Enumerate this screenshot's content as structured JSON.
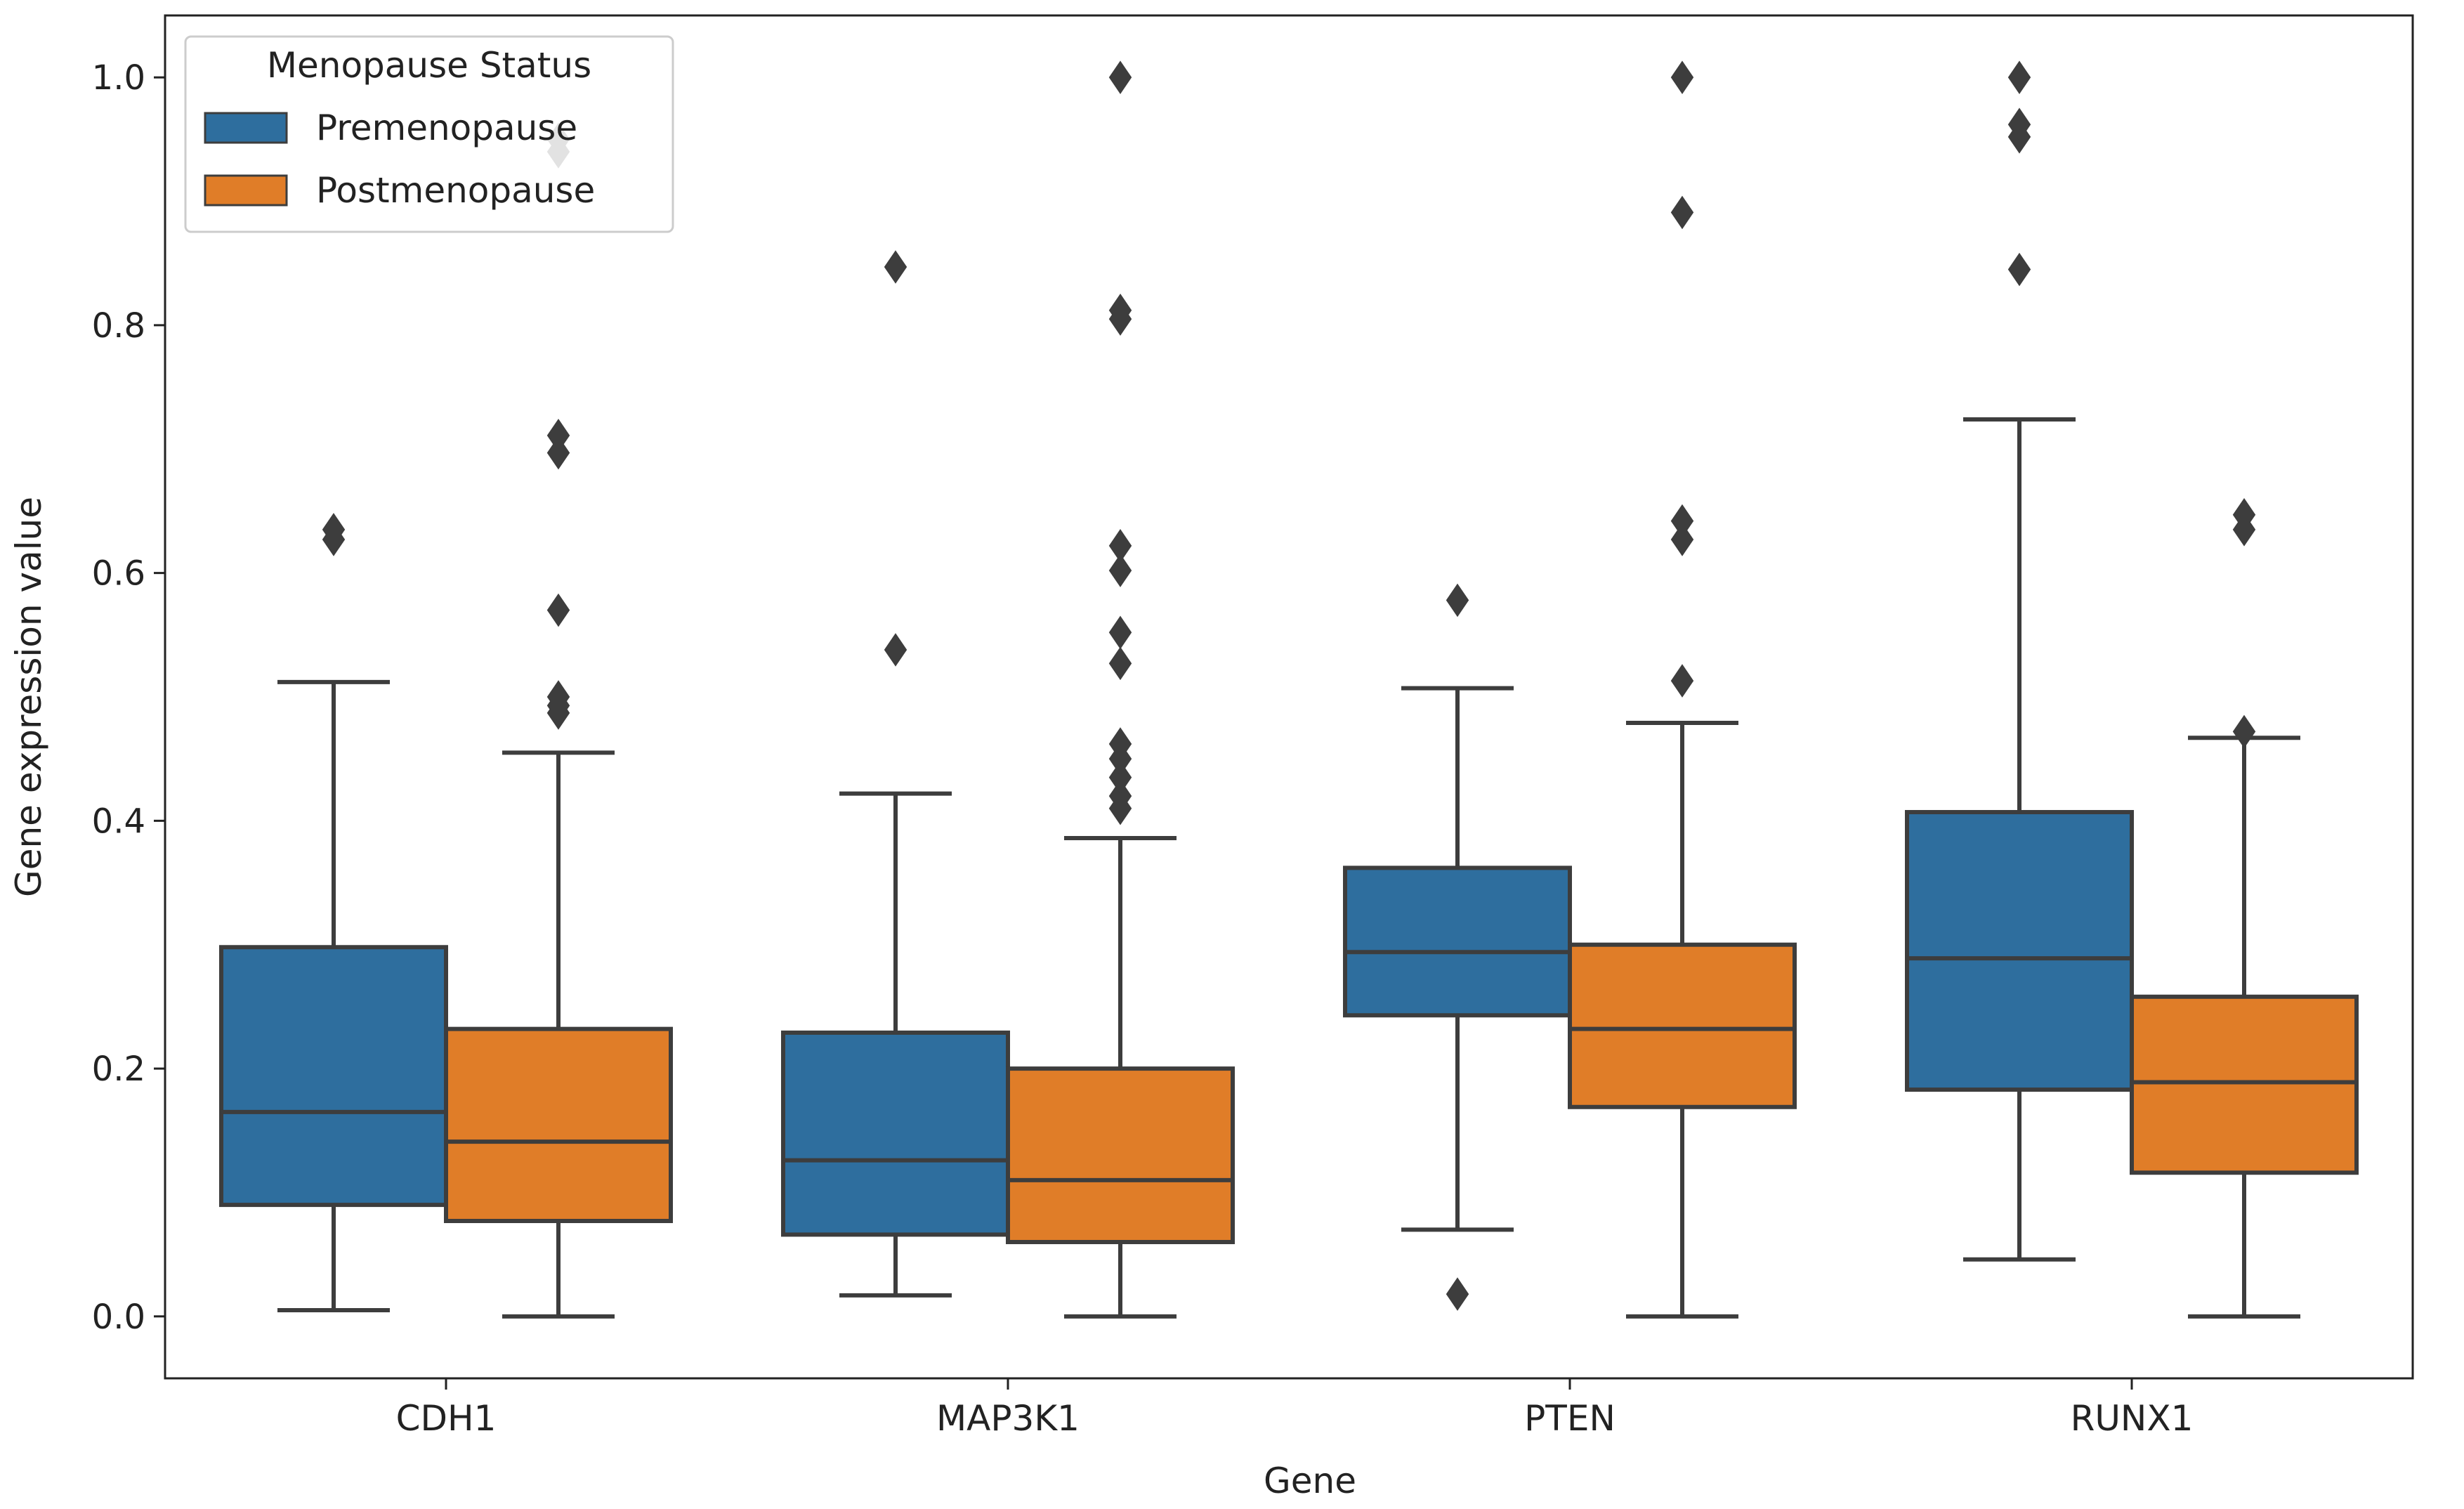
{
  "chart_data": {
    "type": "boxplot",
    "xlabel": "Gene",
    "ylabel": "Gene expression value",
    "ylim": [
      -0.05,
      1.05
    ],
    "yticks": [
      0.0,
      0.2,
      0.4,
      0.6,
      0.8,
      1.0
    ],
    "ytick_labels": [
      "0.0",
      "0.2",
      "0.4",
      "0.6",
      "0.8",
      "1.0"
    ],
    "categories": [
      "CDH1",
      "MAP3K1",
      "PTEN",
      "RUNX1"
    ],
    "legend": {
      "title": "Menopause Status",
      "placement": "top-left",
      "entries": [
        {
          "name": "Premenopause",
          "color": "#2e6e9e"
        },
        {
          "name": "Postmenopause",
          "color": "#e07d28"
        }
      ]
    },
    "series": [
      {
        "name": "Premenopause",
        "color": "#2e6e9e",
        "boxes": [
          {
            "category": "CDH1",
            "whisker_low": 0.005,
            "q1": 0.09,
            "median": 0.165,
            "q3": 0.298,
            "whisker_high": 0.512,
            "outliers": [
              0.627,
              0.635
            ]
          },
          {
            "category": "MAP3K1",
            "whisker_low": 0.017,
            "q1": 0.066,
            "median": 0.126,
            "q3": 0.229,
            "whisker_high": 0.422,
            "outliers": [
              0.538,
              0.847
            ]
          },
          {
            "category": "PTEN",
            "whisker_low": 0.07,
            "q1": 0.243,
            "median": 0.294,
            "q3": 0.362,
            "whisker_high": 0.507,
            "outliers": [
              0.018,
              0.578
            ]
          },
          {
            "category": "RUNX1",
            "whisker_low": 0.046,
            "q1": 0.183,
            "median": 0.289,
            "q3": 0.407,
            "whisker_high": 0.724,
            "outliers": [
              0.845,
              0.952,
              0.962,
              1.0
            ]
          }
        ]
      },
      {
        "name": "Postmenopause",
        "color": "#e07d28",
        "boxes": [
          {
            "category": "CDH1",
            "whisker_low": 0.0,
            "q1": 0.077,
            "median": 0.141,
            "q3": 0.232,
            "whisker_high": 0.455,
            "outliers": [
              0.487,
              0.493,
              0.5,
              0.57,
              0.697,
              0.711,
              0.94,
              0.95
            ]
          },
          {
            "category": "MAP3K1",
            "whisker_low": 0.0,
            "q1": 0.06,
            "median": 0.11,
            "q3": 0.2,
            "whisker_high": 0.386,
            "outliers": [
              0.41,
              0.42,
              0.435,
              0.45,
              0.462,
              0.527,
              0.552,
              0.602,
              0.622,
              0.805,
              0.812,
              1.0
            ]
          },
          {
            "category": "PTEN",
            "whisker_low": 0.0,
            "q1": 0.169,
            "median": 0.232,
            "q3": 0.3,
            "whisker_high": 0.479,
            "outliers": [
              0.513,
              0.627,
              0.642,
              0.891,
              1.0
            ]
          },
          {
            "category": "RUNX1",
            "whisker_low": 0.0,
            "q1": 0.116,
            "median": 0.189,
            "q3": 0.258,
            "whisker_high": 0.467,
            "outliers": [
              0.472,
              0.635,
              0.647
            ]
          }
        ]
      }
    ]
  }
}
